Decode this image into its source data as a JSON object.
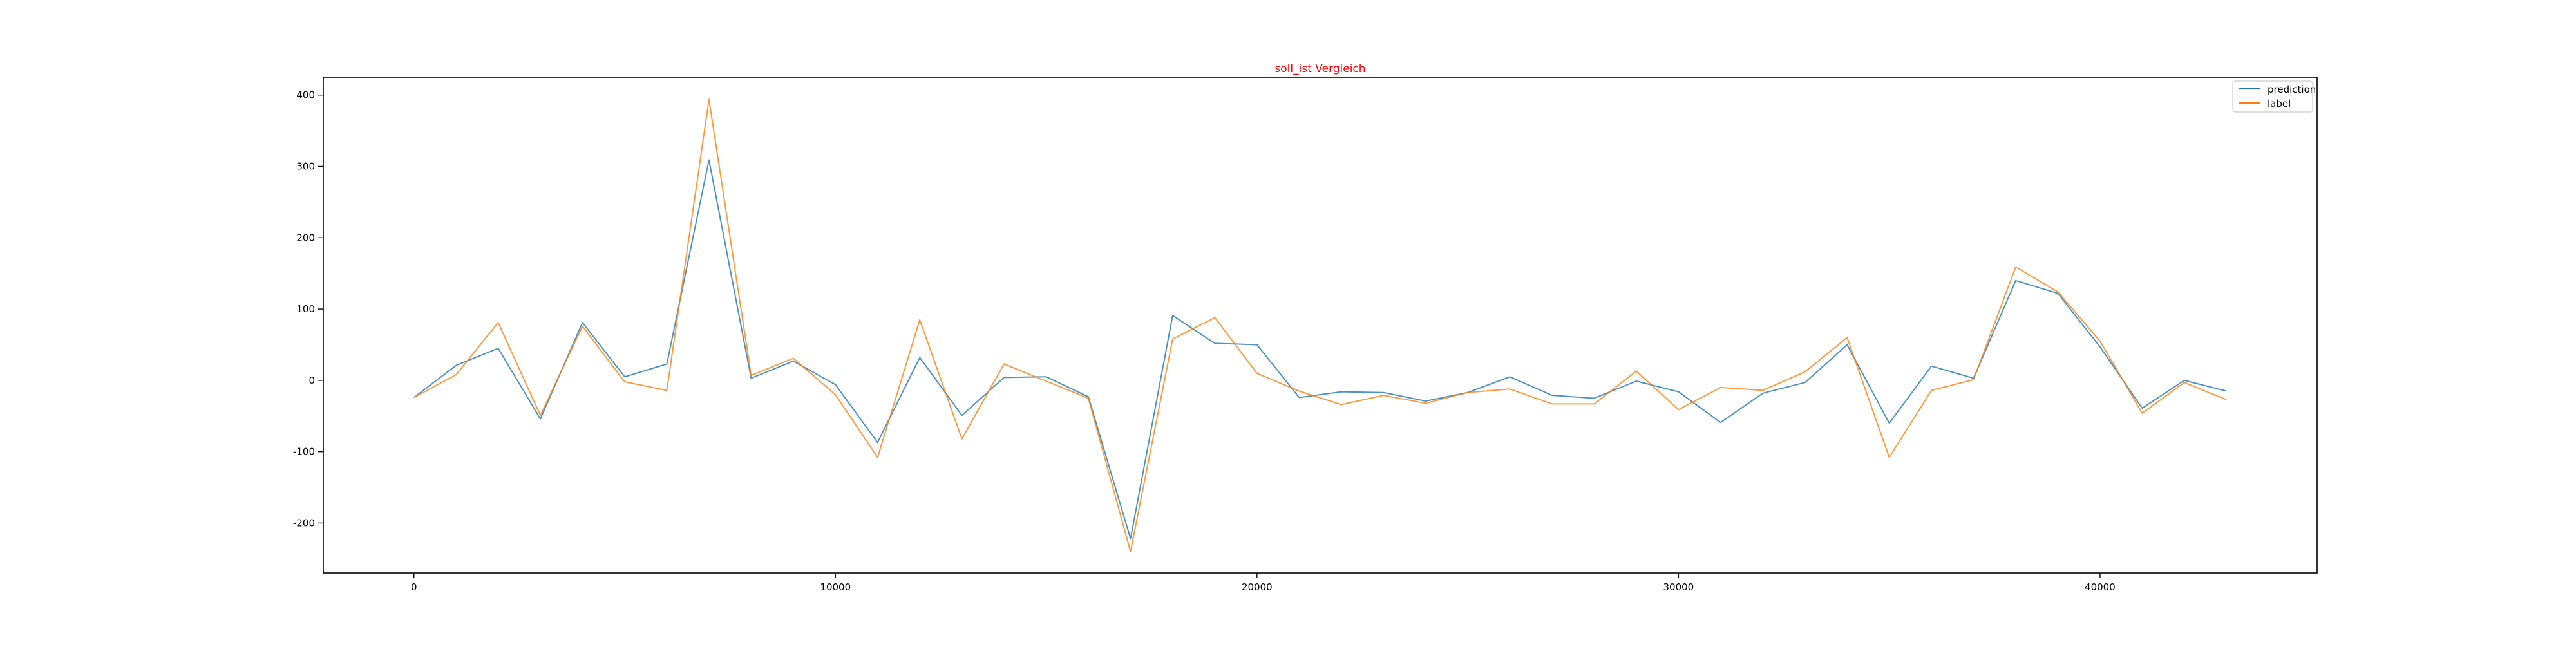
{
  "chart_data": {
    "type": "line",
    "title": "soll_ist Vergleich",
    "xlabel": "",
    "ylabel": "",
    "xlim": [
      -2150,
      45150
    ],
    "ylim": [
      -270,
      425
    ],
    "xticks": [
      0,
      10000,
      20000,
      30000,
      40000
    ],
    "yticks": [
      -200,
      -100,
      0,
      100,
      200,
      300,
      400
    ],
    "grid": false,
    "legend_position": "top-right",
    "x": [
      0,
      1000,
      2000,
      3000,
      4000,
      5000,
      6000,
      7000,
      8000,
      9000,
      10000,
      11000,
      12000,
      13000,
      14000,
      15000,
      16000,
      17000,
      18000,
      19000,
      20000,
      21000,
      22000,
      23000,
      24000,
      25000,
      26000,
      27000,
      28000,
      29000,
      30000,
      31000,
      32000,
      33000,
      34000,
      35000,
      36000,
      37000,
      38000,
      39000,
      40000,
      41000,
      42000,
      43000
    ],
    "series": [
      {
        "name": "prediction",
        "color": "#1f77b4",
        "values": [
          -24,
          21,
          45,
          -54,
          81,
          5,
          23,
          309,
          3,
          27,
          -6,
          -87,
          32,
          -49,
          4,
          5,
          -23,
          -222,
          91,
          52,
          50,
          -24,
          -16,
          -17,
          -29,
          -17,
          5,
          -21,
          -25,
          -1,
          -16,
          -59,
          -18,
          -3,
          50,
          -60,
          20,
          3,
          140,
          122,
          47,
          -39,
          0,
          -15
        ]
      },
      {
        "name": "label",
        "color": "#ff7f0e",
        "values": [
          -24,
          8,
          81,
          -49,
          76,
          -2,
          -14,
          394,
          7,
          31,
          -20,
          -108,
          85,
          -82,
          23,
          -1,
          -25,
          -240,
          58,
          88,
          10,
          -15,
          -34,
          -21,
          -32,
          -17,
          -12,
          -33,
          -33,
          13,
          -41,
          -10,
          -14,
          12,
          60,
          -108,
          -14,
          1,
          159,
          124,
          55,
          -46,
          -3,
          -27
        ]
      }
    ]
  }
}
